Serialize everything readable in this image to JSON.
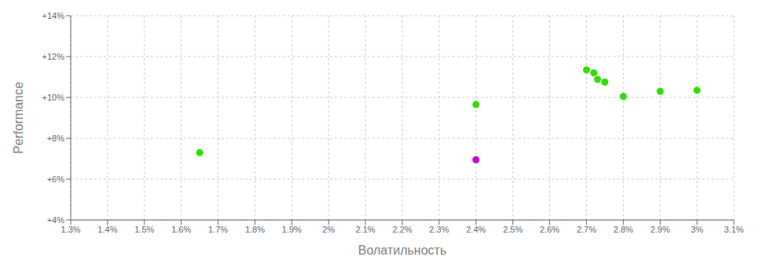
{
  "chart_data": {
    "type": "scatter",
    "xlabel": "Волатильность",
    "ylabel": "Performance",
    "xlim": [
      0.013,
      0.031
    ],
    "ylim": [
      0.04,
      0.14
    ],
    "xticks": [
      {
        "value": 0.013,
        "label": "1.3%"
      },
      {
        "value": 0.014,
        "label": "1.4%"
      },
      {
        "value": 0.015,
        "label": "1.5%"
      },
      {
        "value": 0.016,
        "label": "1.6%"
      },
      {
        "value": 0.017,
        "label": "1.7%"
      },
      {
        "value": 0.018,
        "label": "1.8%"
      },
      {
        "value": 0.019,
        "label": "1.9%"
      },
      {
        "value": 0.02,
        "label": "2%"
      },
      {
        "value": 0.021,
        "label": "2.1%"
      },
      {
        "value": 0.022,
        "label": "2.2%"
      },
      {
        "value": 0.023,
        "label": "2.3%"
      },
      {
        "value": 0.024,
        "label": "2.4%"
      },
      {
        "value": 0.025,
        "label": "2.5%"
      },
      {
        "value": 0.026,
        "label": "2.6%"
      },
      {
        "value": 0.027,
        "label": "2.7%"
      },
      {
        "value": 0.028,
        "label": "2.8%"
      },
      {
        "value": 0.029,
        "label": "2.9%"
      },
      {
        "value": 0.03,
        "label": "3%"
      },
      {
        "value": 0.031,
        "label": "3.1%"
      }
    ],
    "yticks": [
      {
        "value": 0.04,
        "label": "+4%"
      },
      {
        "value": 0.06,
        "label": "+6%"
      },
      {
        "value": 0.08,
        "label": "+8%"
      },
      {
        "value": 0.1,
        "label": "+10%"
      },
      {
        "value": 0.12,
        "label": "+12%"
      },
      {
        "value": 0.14,
        "label": "+14%"
      }
    ],
    "grid": true,
    "series": [
      {
        "color": "#33dd00",
        "x": [
          0.0165,
          0.024,
          0.027,
          0.0272,
          0.0273,
          0.0275,
          0.028,
          0.029,
          0.03
        ],
        "values": [
          0.073,
          0.0965,
          0.1135,
          0.112,
          0.1088,
          0.1075,
          0.1005,
          0.103,
          0.1035
        ]
      },
      {
        "color": "#cc00cc",
        "x": [
          0.024
        ],
        "values": [
          0.0695
        ]
      }
    ]
  }
}
